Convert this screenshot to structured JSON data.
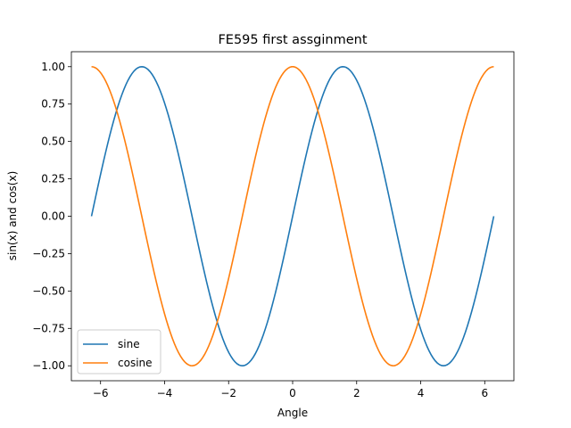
{
  "chart_data": {
    "type": "line",
    "title": "FE595 first assginment",
    "xlabel": "Angle",
    "ylabel": "sin(x) and cos(x)",
    "xlim": [
      -6.911503837897545,
      6.911503837897545
    ],
    "ylim": [
      -1.1,
      1.1
    ],
    "xticks": [
      -6,
      -4,
      -2,
      0,
      2,
      4,
      6
    ],
    "xtick_labels": [
      "−6",
      "−4",
      "−2",
      "0",
      "2",
      "4",
      "6"
    ],
    "yticks": [
      -1.0,
      -0.75,
      -0.5,
      -0.25,
      0.0,
      0.25,
      0.5,
      0.75,
      1.0
    ],
    "ytick_labels": [
      "−1.00",
      "−0.75",
      "−0.50",
      "−0.25",
      "0.00",
      "0.25",
      "0.50",
      "0.75",
      "1.00"
    ],
    "grid": false,
    "legend_position": "lower-left",
    "x_domain": [
      -6.283185307179586,
      6.283185307179586
    ],
    "samples": 200,
    "series": [
      {
        "name": "sine",
        "function": "sin",
        "color": "#1f77b4"
      },
      {
        "name": "cosine",
        "function": "cos",
        "color": "#ff7f0e"
      }
    ]
  }
}
